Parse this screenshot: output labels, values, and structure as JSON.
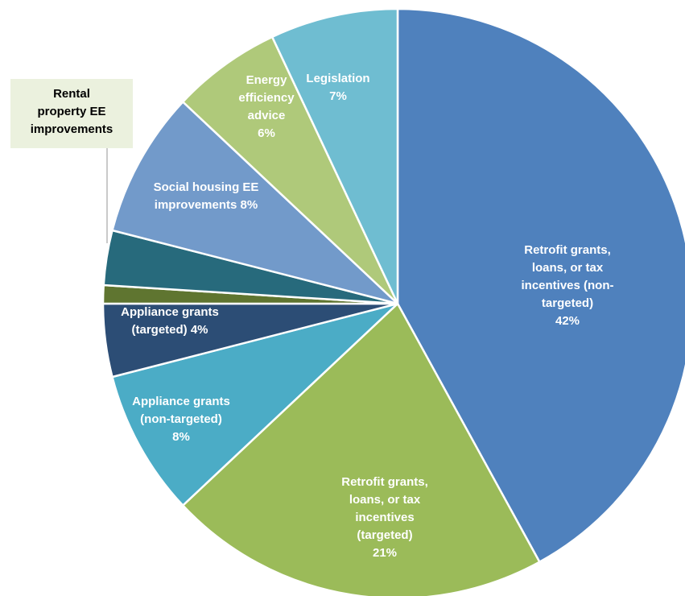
{
  "chart_data": {
    "type": "pie",
    "title": "",
    "categories": [
      "Retrofit grants, loans, or tax incentives (non-targeted)",
      "Retrofit grants, loans, or tax incentives (targeted)",
      "Appliance grants (non-targeted)",
      "Appliance grants (targeted)",
      "",
      "Rental property EE improvements",
      "Social housing EE improvements",
      "Energy efficiency advice",
      "Legislation"
    ],
    "values": [
      42,
      21,
      8,
      4,
      1,
      3,
      8,
      6,
      7
    ],
    "labels": [
      [
        "Retrofit grants,",
        "loans, or tax",
        "incentives (non-",
        "targeted)",
        "42%"
      ],
      [
        "Retrofit grants,",
        "loans, or tax",
        "incentives",
        "(targeted)",
        "21%"
      ],
      [
        "Appliance grants",
        "(non-targeted)",
        "8%"
      ],
      [
        "Appliance grants",
        "(targeted) 4%"
      ],
      [],
      [],
      [
        "Social housing EE",
        "improvements 8%"
      ],
      [
        "Energy",
        "efficiency",
        "advice",
        "6%"
      ],
      [
        "Legislation",
        "7%"
      ]
    ],
    "callout": {
      "slice_index": 5,
      "lines": [
        "Rental",
        "property EE",
        "improvements"
      ]
    },
    "colors": [
      "#4F81BD",
      "#9BBB59",
      "#4BACC6",
      "#2C4D75",
      "#5F7530",
      "#276A7C",
      "#729ACA",
      "#AFC97A",
      "#6FBDD1"
    ],
    "callout_box_color": "#EBF1DE",
    "start_angle_deg": 0,
    "direction": "clockwise",
    "legend": "none"
  }
}
